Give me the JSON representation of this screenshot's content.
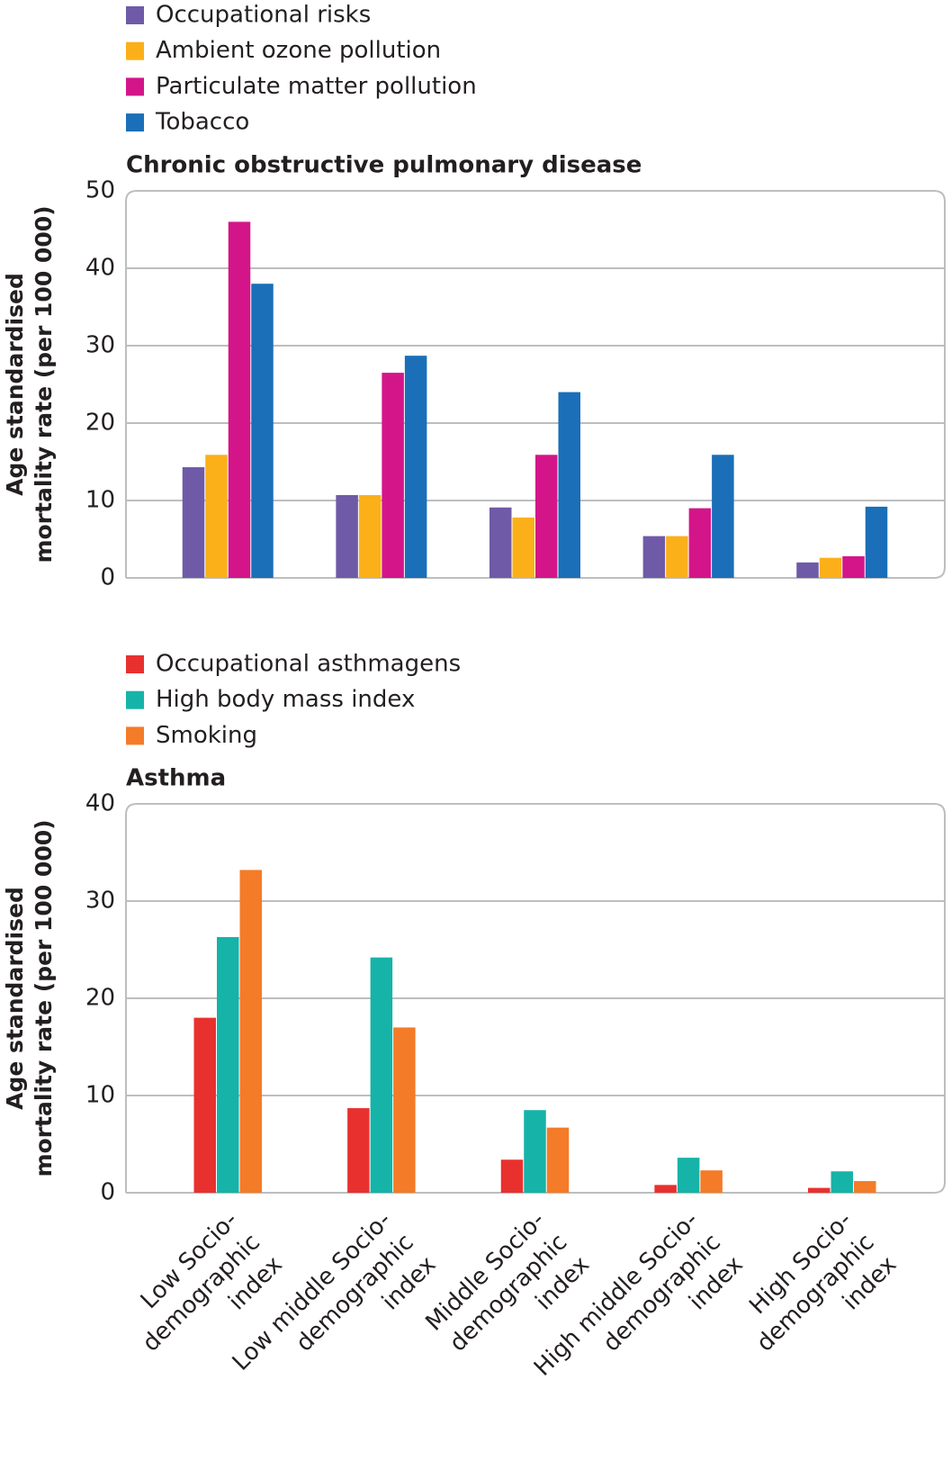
{
  "chart_data": [
    {
      "type": "bar",
      "title": "Chronic obstructive pulmonary disease",
      "y_label": [
        "Age standardised",
        "mortality rate (per 100 000)"
      ],
      "categories": [
        null,
        null,
        null,
        null,
        null
      ],
      "series": [
        {
          "name": "Occupational risks",
          "color": "#6f5aa8",
          "values": [
            14.3,
            10.7,
            9.1,
            5.4,
            2.0
          ]
        },
        {
          "name": "Ambient ozone pollution",
          "color": "#fbb01a",
          "values": [
            15.9,
            10.7,
            7.8,
            5.4,
            2.6
          ]
        },
        {
          "name": "Particulate matter pollution",
          "color": "#d4158a",
          "values": [
            46,
            26.5,
            15.9,
            9.0,
            2.8
          ]
        },
        {
          "name": "Tobacco",
          "color": "#1a6fb8",
          "values": [
            38,
            28.7,
            24,
            15.9,
            9.2
          ]
        }
      ],
      "ylim": [
        0,
        50
      ],
      "yticks": [
        0,
        10,
        20,
        30,
        40,
        50
      ],
      "grid": true
    },
    {
      "type": "bar",
      "title": "Asthma",
      "y_label": [
        "Age standardised",
        "mortality rate (per 100 000)"
      ],
      "categories": [
        [
          "Low Socio-",
          "demographic",
          "index"
        ],
        [
          "Low middle Socio-",
          "demographic",
          "index"
        ],
        [
          "Middle Socio-",
          "demographic",
          "index"
        ],
        [
          "High middle Socio-",
          "demographic",
          "index"
        ],
        [
          "High Socio-",
          "demographic",
          "index"
        ]
      ],
      "series": [
        {
          "name": "Occupational asthmagens",
          "color": "#e8312f",
          "values": [
            18,
            8.7,
            3.4,
            0.8,
            0.5
          ]
        },
        {
          "name": "High body mass index",
          "color": "#16b3a8",
          "values": [
            26.3,
            24.2,
            8.5,
            3.6,
            2.2
          ]
        },
        {
          "name": "Smoking",
          "color": "#f47b28",
          "values": [
            33.2,
            17,
            6.7,
            2.3,
            1.2
          ]
        }
      ],
      "ylim": [
        0,
        40
      ],
      "yticks": [
        0,
        10,
        20,
        30,
        40
      ],
      "grid": true
    }
  ]
}
